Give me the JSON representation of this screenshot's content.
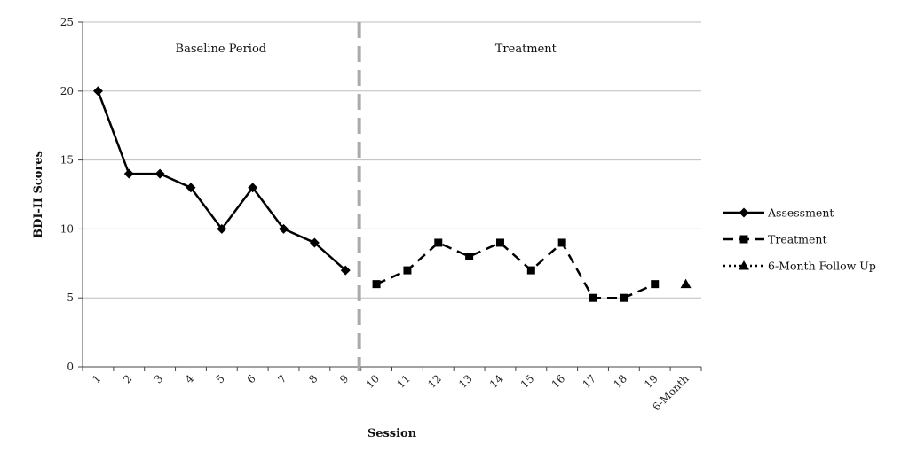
{
  "chart_data": {
    "type": "line",
    "xlabel": "Session",
    "ylabel": "BDI-II Scores",
    "ylim": [
      0,
      25
    ],
    "yticks": [
      0,
      5,
      10,
      15,
      20,
      25
    ],
    "grid": "horizontal",
    "legend_position": "right",
    "categories": [
      "1",
      "2",
      "3",
      "4",
      "5",
      "6",
      "7",
      "8",
      "9",
      "10",
      "11",
      "12",
      "13",
      "14",
      "15",
      "16",
      "17",
      "18",
      "19",
      "6-Month"
    ],
    "phase_divider_after": "9",
    "phase_labels": [
      "Baseline Period",
      "Treatment"
    ],
    "divider_color": "#aaaaaa",
    "series": [
      {
        "name": "Assessment",
        "marker": "diamond",
        "line": "solid",
        "x": [
          "1",
          "2",
          "3",
          "4",
          "5",
          "6",
          "7",
          "8",
          "9"
        ],
        "values": [
          20,
          14,
          14,
          13,
          10,
          13,
          10,
          9,
          7
        ]
      },
      {
        "name": "Treatment",
        "marker": "square",
        "line": "dashed",
        "x": [
          "10",
          "11",
          "12",
          "13",
          "14",
          "15",
          "16",
          "17",
          "18",
          "19"
        ],
        "values": [
          6,
          7,
          9,
          8,
          9,
          7,
          9,
          5,
          5,
          6
        ]
      },
      {
        "name": "6-Month Follow Up",
        "marker": "triangle",
        "line": "dotted",
        "x": [
          "6-Month"
        ],
        "values": [
          6
        ]
      }
    ]
  }
}
